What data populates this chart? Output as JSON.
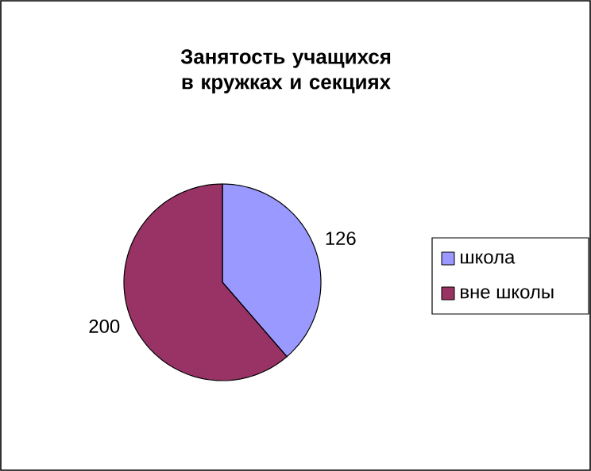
{
  "chart_data": {
    "type": "pie",
    "title": "Занятость учащихся в кружках и секциях",
    "categories": [
      "школа",
      "вне школы"
    ],
    "values": [
      126,
      200
    ],
    "colors": [
      "#9999ff",
      "#993366"
    ],
    "data_labels": true,
    "legend": "right"
  }
}
